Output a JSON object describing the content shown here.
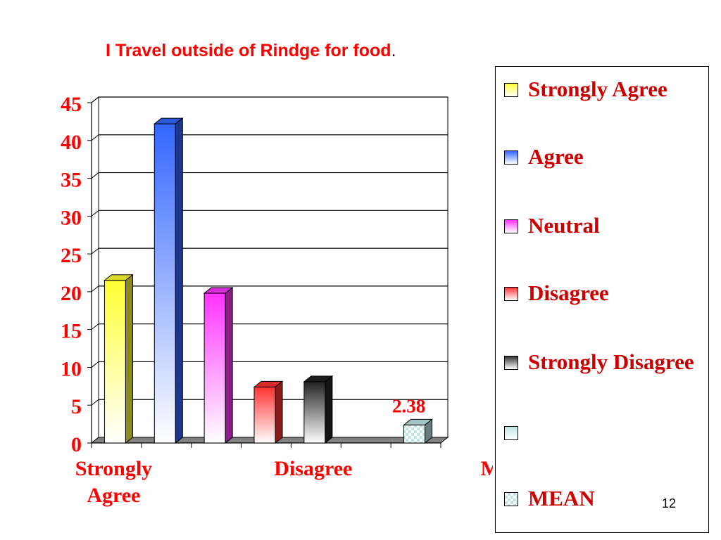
{
  "slide": {
    "title": "I Travel outside of Rindge for food",
    "title_trailing": ".",
    "page_number": "12"
  },
  "chart_data": {
    "type": "bar",
    "title": "I Travel outside of Rindge for food",
    "categories": [
      "Strongly Agree",
      "Agree",
      "Neutral",
      "Disagree",
      "Strongly Disagree",
      "",
      "MEAN"
    ],
    "axis_category_labels": [
      "Strongly\nAgree",
      "",
      "Disagree",
      "",
      "MEAN"
    ],
    "values": [
      21.5,
      42.2,
      19.8,
      7.4,
      8.1,
      null,
      2.38
    ],
    "data_labels": {
      "MEAN": "2.38"
    },
    "ylim": [
      0,
      45
    ],
    "yticks": [
      0,
      5,
      10,
      15,
      20,
      25,
      30,
      35,
      40,
      45
    ],
    "grid": true,
    "legend_position": "right",
    "legend": [
      {
        "label": "Strongly Agree",
        "color": "#ffff33"
      },
      {
        "label": "Agree",
        "color": "#3366ff"
      },
      {
        "label": "Neutral",
        "color": "#ff33ff"
      },
      {
        "label": "Disagree",
        "color": "#ff3333"
      },
      {
        "label": "Strongly Disagree",
        "color": "#333333"
      },
      {
        "label": "",
        "color": "#bfe6e6"
      },
      {
        "label": "MEAN",
        "color": "#bfe6e6"
      }
    ],
    "colors": {
      "bars": [
        "#ffff33",
        "#3366ff",
        "#ff33ff",
        "#ff3333",
        "#222222",
        "#bfe6e6",
        "#bfe6e6"
      ],
      "text": "#ff0000"
    }
  }
}
